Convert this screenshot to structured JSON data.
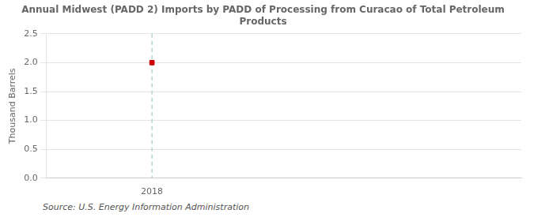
{
  "chart_data": {
    "type": "scatter",
    "title": "Annual Midwest (PADD 2) Imports by PADD of Processing from Curacao of Total Petroleum\nProducts",
    "ylabel": "Thousand Barrels",
    "annotation": "Source: U.S. Energy Information Administration",
    "x": [
      2018
    ],
    "values": [
      2.0
    ],
    "color": "#cc0000",
    "marker": "square",
    "xlim": [
      2017.6,
      2019.4
    ],
    "ylim": [
      0.0,
      2.5
    ],
    "xticks": [
      2018
    ],
    "yticks": [
      {
        "value": 0.0,
        "label": "0.0"
      },
      0.5,
      {
        "value": 1.0,
        "label": "1.0"
      },
      1.5,
      {
        "value": 2.0,
        "label": "2.0"
      },
      2.5
    ],
    "grid": "y",
    "vlines": [
      {
        "x": 2018,
        "color": "#8bbfbf",
        "line_style": "dashed"
      }
    ]
  }
}
